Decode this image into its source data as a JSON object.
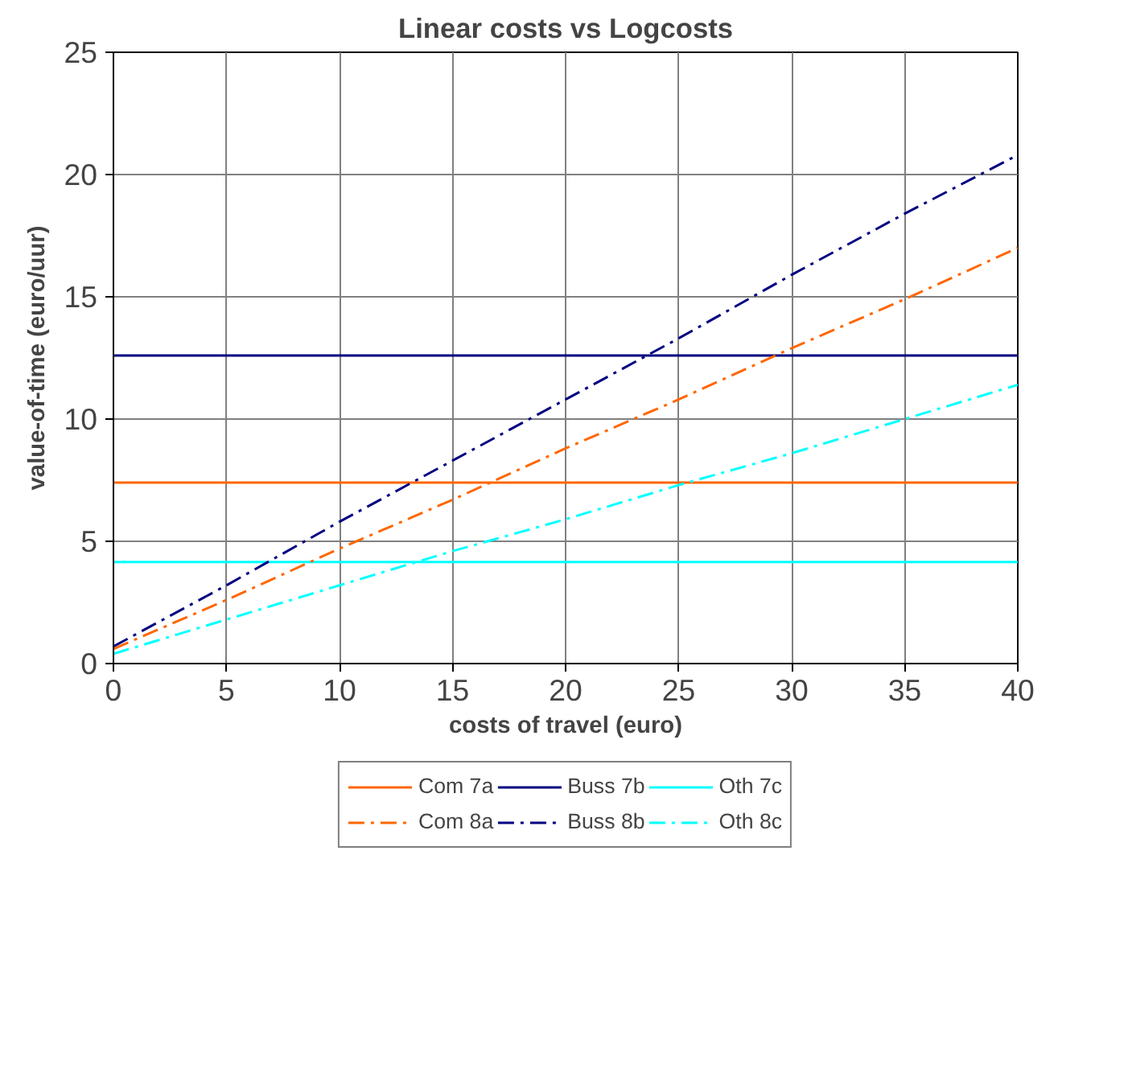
{
  "chart_data": {
    "type": "line",
    "title": "Linear costs vs Logcosts",
    "xlabel": "costs of travel (euro)",
    "ylabel": "value-of-time (euro/uur)",
    "xlim": [
      0,
      40
    ],
    "xticks": [
      0,
      5,
      10,
      15,
      20,
      25,
      30,
      35,
      40
    ],
    "ylim": [
      0,
      25
    ],
    "yticks": [
      0,
      5,
      10,
      15,
      20,
      25
    ],
    "grid": true,
    "legend": "bottom",
    "marker": "none",
    "series": [
      {
        "name": "Com 7a",
        "color": "#ff6600",
        "line_style": "solid",
        "x": [
          0,
          40
        ],
        "values": [
          7.4,
          7.4
        ]
      },
      {
        "name": "Buss 7b",
        "color": "#000080",
        "line_style": "solid",
        "x": [
          0,
          40
        ],
        "values": [
          12.6,
          12.6
        ]
      },
      {
        "name": "Oth 7c",
        "color": "#00ffff",
        "line_style": "solid",
        "x": [
          0,
          40
        ],
        "values": [
          4.15,
          4.15
        ]
      },
      {
        "name": "Com 8a",
        "color": "#ff6600",
        "line_style": "dashdot",
        "x": [
          0,
          5,
          10,
          15,
          20,
          25,
          30,
          35,
          40
        ],
        "values": [
          0.6,
          2.6,
          4.7,
          6.7,
          8.8,
          10.8,
          12.9,
          14.9,
          17.0
        ]
      },
      {
        "name": "Buss 8b",
        "color": "#000080",
        "line_style": "dashdot",
        "x": [
          0,
          5,
          10,
          15,
          20,
          25,
          30,
          35,
          40
        ],
        "values": [
          0.7,
          3.2,
          5.8,
          8.3,
          10.8,
          13.3,
          15.9,
          18.4,
          20.8
        ]
      },
      {
        "name": "Oth 8c",
        "color": "#00ffff",
        "line_style": "dashdot",
        "x": [
          0,
          5,
          10,
          15,
          20,
          25,
          30,
          35,
          40
        ],
        "values": [
          0.4,
          1.8,
          3.2,
          4.6,
          5.9,
          7.3,
          8.6,
          10.0,
          11.4
        ]
      }
    ]
  }
}
